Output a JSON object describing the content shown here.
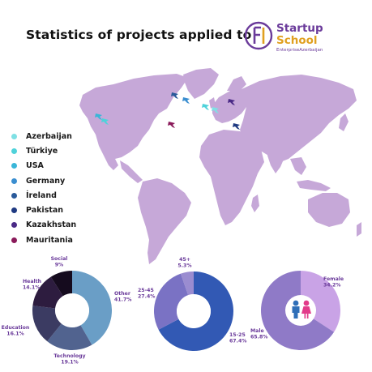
{
  "title": "Statistics of projects applied to",
  "logo": {
    "line1": "Startup",
    "line2": "School",
    "tagline": "EnterpriseAzerbaijan"
  },
  "legend": [
    {
      "label": "Azerbaijan",
      "color": "#7fe0e4"
    },
    {
      "label": "Türkiye",
      "color": "#4fd2da"
    },
    {
      "label": "USA",
      "color": "#3ab6d8"
    },
    {
      "label": "Germany",
      "color": "#3a8ed0"
    },
    {
      "label": "İreland",
      "color": "#2a5a9a"
    },
    {
      "label": "Pakistan",
      "color": "#1f3a82"
    },
    {
      "label": "Kazakhstan",
      "color": "#4a2a86"
    },
    {
      "label": "Mauritania",
      "color": "#8a1a5a"
    }
  ],
  "chart_data": [
    {
      "type": "pie",
      "labels": [
        "Other",
        "Technology",
        "Education",
        "Health",
        "Social"
      ],
      "values": [
        41.7,
        19.1,
        16.1,
        14.1,
        9
      ],
      "value_labels": [
        "41.7%",
        "19.1%",
        "16.1%",
        "14.1%",
        "9%"
      ],
      "colors": [
        "#6a9ec6",
        "#51638f",
        "#3b3b62",
        "#2d1c3f",
        "#150b1e"
      ],
      "donut": true
    },
    {
      "type": "pie",
      "labels": [
        "15-25",
        "25-45",
        "45+"
      ],
      "values": [
        67.4,
        27.4,
        5.3
      ],
      "value_labels": [
        "67.4%",
        "27.4%",
        "5.3%"
      ],
      "colors": [
        "#3259b4",
        "#7a72c4",
        "#9a8cd0"
      ],
      "donut": true
    },
    {
      "type": "pie",
      "labels": [
        "Female",
        "Male"
      ],
      "values": [
        34.2,
        65.8
      ],
      "value_labels": [
        "34.2%",
        "65.8%"
      ],
      "colors": [
        "#c9a3e6",
        "#8f7ac7"
      ],
      "donut": false
    }
  ]
}
